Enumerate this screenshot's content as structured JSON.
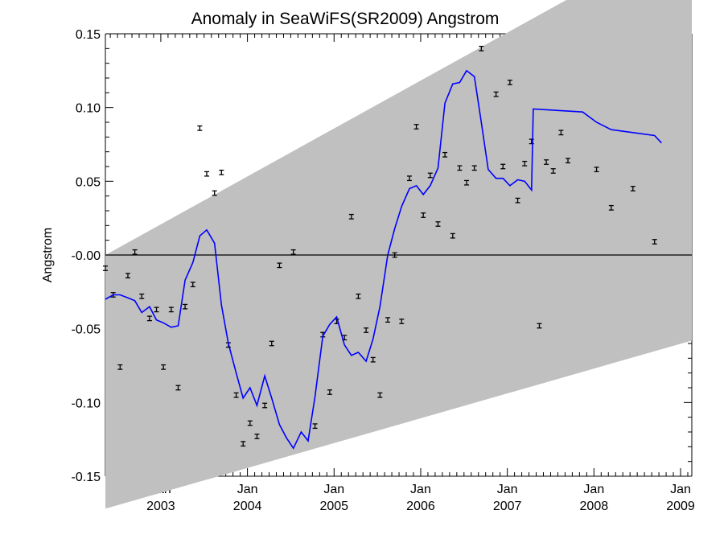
{
  "chart_data": {
    "type": "line",
    "title": "Anomaly in SeaWiFS(SR2009) Angstrom",
    "xlabel": "",
    "ylabel": "Angstrom",
    "xlim": [
      2002.36,
      2009.13
    ],
    "ylim": [
      -0.15,
      0.15
    ],
    "y_ticks": [
      {
        "v": 0.15,
        "label": "0.15"
      },
      {
        "v": 0.1,
        "label": "0.10"
      },
      {
        "v": 0.05,
        "label": "0.05"
      },
      {
        "v": 0.0,
        "label": "-0.00"
      },
      {
        "v": -0.05,
        "label": "-0.05"
      },
      {
        "v": -0.1,
        "label": "-0.10"
      },
      {
        "v": -0.15,
        "label": "-0.15"
      }
    ],
    "x_ticks": [
      {
        "v": 2003.0,
        "month": "Jan",
        "year": "2003"
      },
      {
        "v": 2004.0,
        "month": "Jan",
        "year": "2004"
      },
      {
        "v": 2005.0,
        "month": "Jan",
        "year": "2005"
      },
      {
        "v": 2006.0,
        "month": "Jan",
        "year": "2006"
      },
      {
        "v": 2007.0,
        "month": "Jan",
        "year": "2007"
      },
      {
        "v": 2008.0,
        "month": "Jan",
        "year": "2008"
      },
      {
        "v": 2009.0,
        "month": "Jan",
        "year": "2009"
      }
    ],
    "zero_line": 0.0,
    "band": {
      "color": "#c0c0c0",
      "upper": [
        [
          2002.36,
          0.0
        ],
        [
          2009.13,
          0.22
        ]
      ],
      "lower": [
        [
          2002.36,
          -0.172
        ],
        [
          2009.13,
          -0.058
        ]
      ]
    },
    "series": [
      {
        "kind": "smoothed",
        "color": "#0000ff",
        "points": [
          [
            2002.36,
            -0.03
          ],
          [
            2002.45,
            -0.027
          ],
          [
            2002.53,
            -0.027
          ],
          [
            2002.62,
            -0.029
          ],
          [
            2002.7,
            -0.031
          ],
          [
            2002.78,
            -0.039
          ],
          [
            2002.87,
            -0.035
          ],
          [
            2002.95,
            -0.044
          ],
          [
            2003.03,
            -0.046
          ],
          [
            2003.12,
            -0.049
          ],
          [
            2003.2,
            -0.048
          ],
          [
            2003.28,
            -0.017
          ],
          [
            2003.37,
            -0.005
          ],
          [
            2003.45,
            0.013
          ],
          [
            2003.53,
            0.017
          ],
          [
            2003.62,
            0.008
          ],
          [
            2003.7,
            -0.034
          ],
          [
            2003.78,
            -0.06
          ],
          [
            2003.87,
            -0.08
          ],
          [
            2003.95,
            -0.097
          ],
          [
            2004.03,
            -0.09
          ],
          [
            2004.11,
            -0.102
          ],
          [
            2004.2,
            -0.082
          ],
          [
            2004.28,
            -0.097
          ],
          [
            2004.37,
            -0.115
          ],
          [
            2004.45,
            -0.124
          ],
          [
            2004.53,
            -0.131
          ],
          [
            2004.62,
            -0.12
          ],
          [
            2004.7,
            -0.126
          ],
          [
            2004.78,
            -0.096
          ],
          [
            2004.87,
            -0.055
          ],
          [
            2004.95,
            -0.047
          ],
          [
            2005.03,
            -0.042
          ],
          [
            2005.12,
            -0.061
          ],
          [
            2005.2,
            -0.068
          ],
          [
            2005.28,
            -0.066
          ],
          [
            2005.37,
            -0.072
          ],
          [
            2005.45,
            -0.057
          ],
          [
            2005.53,
            -0.035
          ],
          [
            2005.62,
            0.0
          ],
          [
            2005.7,
            0.018
          ],
          [
            2005.78,
            0.033
          ],
          [
            2005.87,
            0.045
          ],
          [
            2005.95,
            0.047
          ],
          [
            2006.03,
            0.041
          ],
          [
            2006.11,
            0.047
          ],
          [
            2006.2,
            0.059
          ],
          [
            2006.28,
            0.103
          ],
          [
            2006.37,
            0.116
          ],
          [
            2006.45,
            0.117
          ],
          [
            2006.53,
            0.125
          ],
          [
            2006.62,
            0.121
          ],
          [
            2006.7,
            0.09
          ],
          [
            2006.78,
            0.058
          ],
          [
            2006.87,
            0.052
          ],
          [
            2006.95,
            0.052
          ],
          [
            2007.03,
            0.047
          ],
          [
            2007.12,
            0.051
          ],
          [
            2007.2,
            0.05
          ],
          [
            2007.28,
            0.044
          ],
          [
            2007.3,
            0.099
          ],
          [
            2007.87,
            0.097
          ],
          [
            2008.03,
            0.09
          ],
          [
            2008.2,
            0.085
          ],
          [
            2008.45,
            0.083
          ],
          [
            2008.7,
            0.081
          ],
          [
            2008.78,
            0.076
          ]
        ]
      },
      {
        "kind": "monthly-with-error-bars",
        "color": "#000000",
        "error": 0.0015,
        "points": [
          [
            2002.36,
            -0.009
          ],
          [
            2002.45,
            -0.027
          ],
          [
            2002.53,
            -0.076
          ],
          [
            2002.62,
            -0.014
          ],
          [
            2002.7,
            0.002
          ],
          [
            2002.78,
            -0.028
          ],
          [
            2002.87,
            -0.043
          ],
          [
            2002.95,
            -0.037
          ],
          [
            2003.03,
            -0.076
          ],
          [
            2003.12,
            -0.037
          ],
          [
            2003.2,
            -0.09
          ],
          [
            2003.28,
            -0.035
          ],
          [
            2003.37,
            -0.02
          ],
          [
            2003.45,
            0.086
          ],
          [
            2003.53,
            0.055
          ],
          [
            2003.62,
            0.042
          ],
          [
            2003.7,
            0.056
          ],
          [
            2003.78,
            -0.061
          ],
          [
            2003.87,
            -0.095
          ],
          [
            2003.95,
            -0.128
          ],
          [
            2004.03,
            -0.114
          ],
          [
            2004.11,
            -0.123
          ],
          [
            2004.2,
            -0.102
          ],
          [
            2004.28,
            -0.06
          ],
          [
            2004.37,
            -0.007
          ],
          [
            2004.53,
            0.002
          ],
          [
            2004.78,
            -0.116
          ],
          [
            2004.87,
            -0.054
          ],
          [
            2004.95,
            -0.093
          ],
          [
            2005.03,
            -0.045
          ],
          [
            2005.12,
            -0.056
          ],
          [
            2005.2,
            0.026
          ],
          [
            2005.28,
            -0.028
          ],
          [
            2005.37,
            -0.051
          ],
          [
            2005.45,
            -0.071
          ],
          [
            2005.53,
            -0.095
          ],
          [
            2005.62,
            -0.044
          ],
          [
            2005.7,
            0.0
          ],
          [
            2005.78,
            -0.045
          ],
          [
            2005.87,
            0.052
          ],
          [
            2005.95,
            0.087
          ],
          [
            2006.03,
            0.027
          ],
          [
            2006.11,
            0.054
          ],
          [
            2006.2,
            0.021
          ],
          [
            2006.28,
            0.068
          ],
          [
            2006.37,
            0.013
          ],
          [
            2006.45,
            0.059
          ],
          [
            2006.53,
            0.049
          ],
          [
            2006.62,
            0.059
          ],
          [
            2006.7,
            0.14
          ],
          [
            2006.87,
            0.109
          ],
          [
            2006.95,
            0.06
          ],
          [
            2007.03,
            0.117
          ],
          [
            2007.12,
            0.037
          ],
          [
            2007.2,
            0.062
          ],
          [
            2007.28,
            0.077
          ],
          [
            2007.37,
            -0.048
          ],
          [
            2007.45,
            0.063
          ],
          [
            2007.53,
            0.057
          ],
          [
            2007.62,
            0.083
          ],
          [
            2007.7,
            0.064
          ],
          [
            2008.03,
            0.058
          ],
          [
            2008.2,
            0.032
          ],
          [
            2008.45,
            0.045
          ],
          [
            2008.7,
            0.009
          ]
        ]
      }
    ]
  }
}
